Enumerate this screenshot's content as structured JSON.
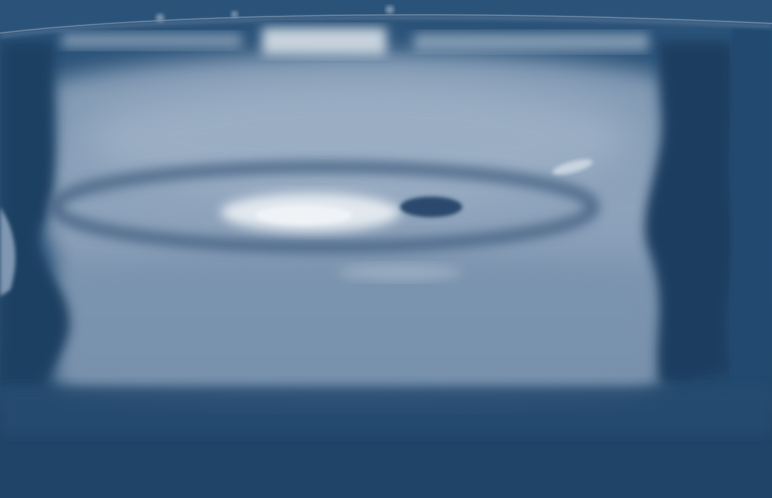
{
  "image": {
    "subject": "water-surface-ripple",
    "tint": "monochrome blue",
    "colors": {
      "background": "#1f4468",
      "deep": "#1b3d60",
      "mid": "#6f8aa8",
      "light": "#c8d3de",
      "highlight": "#e4eaf0"
    }
  }
}
